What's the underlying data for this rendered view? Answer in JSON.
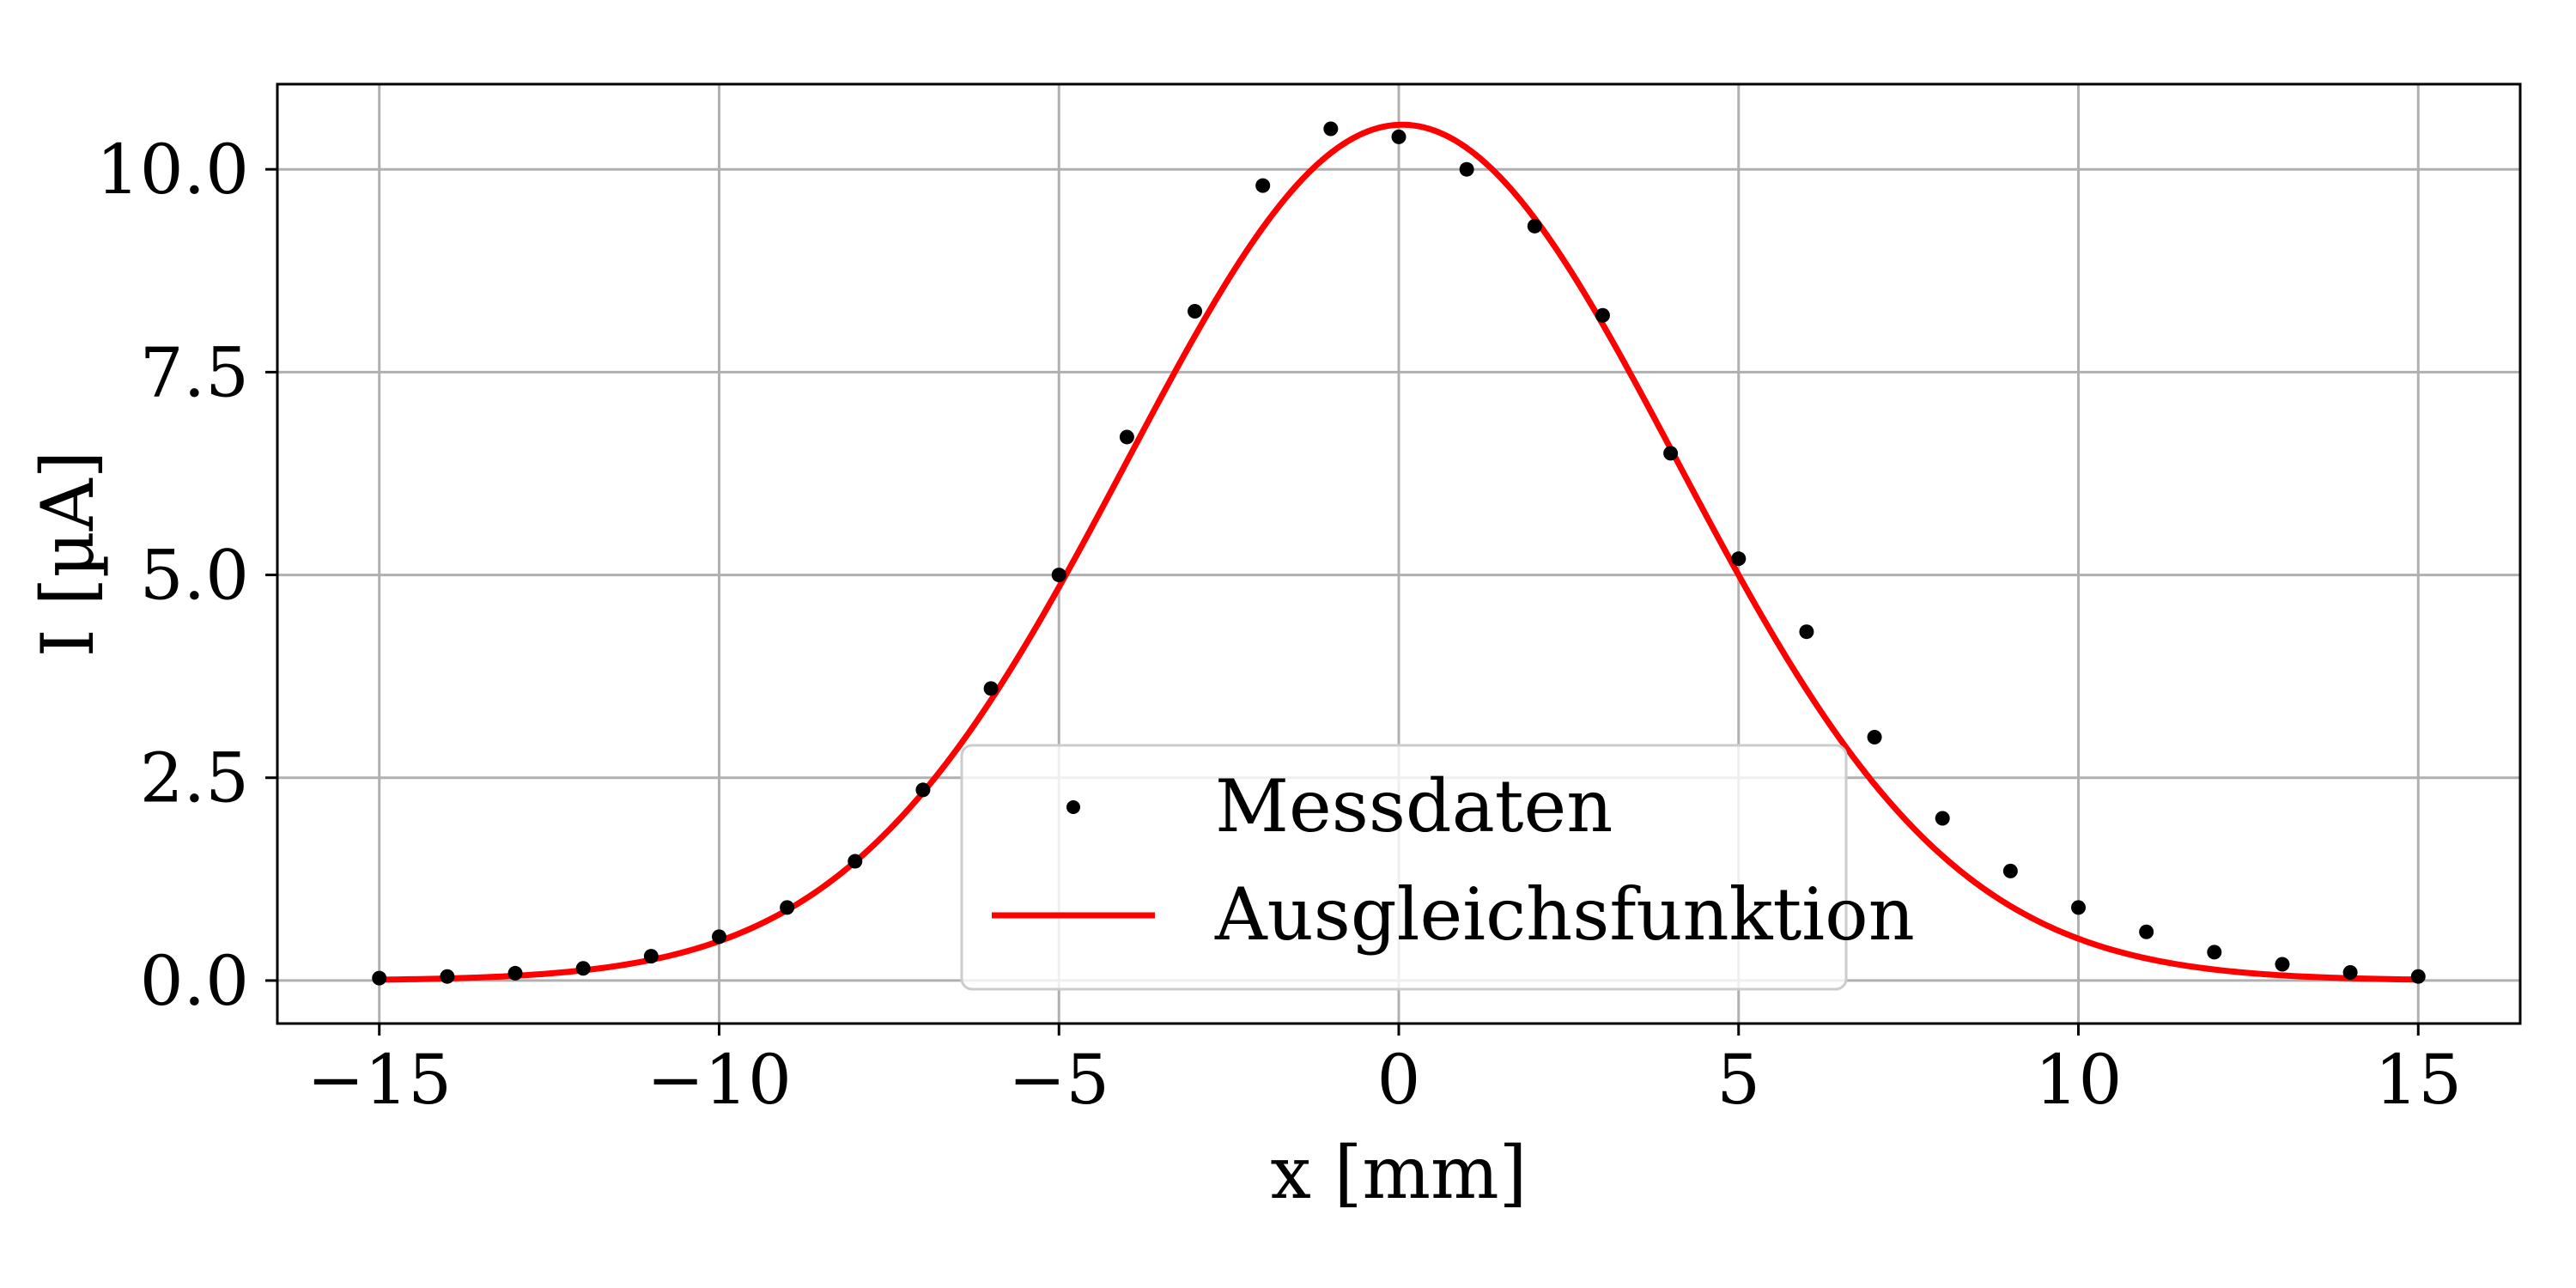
{
  "chart_data": {
    "type": "scatter",
    "title": "",
    "xlabel": "x [mm]",
    "ylabel": "I [µA]",
    "xlim": [
      -16.5,
      16.5
    ],
    "ylim": [
      -0.53,
      11.05
    ],
    "grid": true,
    "legend_position": "bottom-center",
    "x_ticks": [
      {
        "value": -15,
        "label": "−15"
      },
      {
        "value": -10,
        "label": "−10"
      },
      {
        "value": -5,
        "label": "−5"
      },
      {
        "value": 0,
        "label": "0"
      },
      {
        "value": 5,
        "label": "5"
      },
      {
        "value": 10,
        "label": "10"
      },
      {
        "value": 15,
        "label": "15"
      }
    ],
    "y_ticks": [
      {
        "value": 0,
        "label": "0.0"
      },
      {
        "value": 2.5,
        "label": "2.5"
      },
      {
        "value": 5,
        "label": "5.0"
      },
      {
        "value": 7.5,
        "label": "7.5"
      },
      {
        "value": 10,
        "label": "10.0"
      }
    ],
    "series": [
      {
        "name": "Messdaten",
        "kind": "points",
        "color": "#000000",
        "x": [
          -15,
          -14,
          -13,
          -12,
          -11,
          -10,
          -9,
          -8,
          -7,
          -6,
          -5,
          -4,
          -3,
          -2,
          -1,
          0,
          1,
          2,
          3,
          4,
          5,
          6,
          7,
          8,
          9,
          10,
          11,
          12,
          13,
          14,
          15
        ],
        "y": [
          0.03,
          0.05,
          0.09,
          0.15,
          0.3,
          0.54,
          0.9,
          1.47,
          2.35,
          3.6,
          5.0,
          6.7,
          8.25,
          9.8,
          10.5,
          10.4,
          10.0,
          9.3,
          8.2,
          6.5,
          5.2,
          4.3,
          3.0,
          2.0,
          1.35,
          0.9,
          0.6,
          0.35,
          0.2,
          0.1,
          0.05
        ]
      },
      {
        "name": "Ausgleichsfunktion",
        "kind": "line",
        "color": "#ff0000",
        "model": "gaussian",
        "amplitude": 10.55,
        "center": 0.05,
        "sigma": 4.05,
        "x_range": [
          -15,
          15
        ]
      }
    ]
  }
}
